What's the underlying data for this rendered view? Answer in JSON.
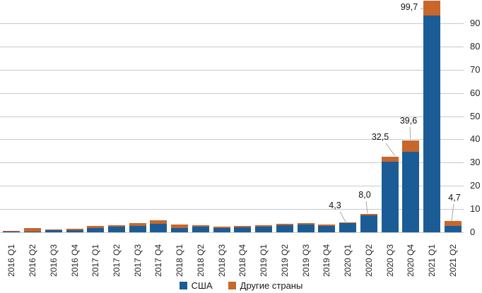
{
  "chart_data": {
    "type": "bar",
    "stacked": true,
    "categories": [
      "2016 Q1",
      "2016 Q2",
      "2016 Q3",
      "2016 Q4",
      "2017 Q1",
      "2017 Q2",
      "2017 Q3",
      "2017 Q4",
      "2018 Q1",
      "2018 Q2",
      "2018 Q3",
      "2018 Q4",
      "2019 Q1",
      "2019 Q2",
      "2019 Q3",
      "2019 Q4",
      "2020 Q1",
      "2020 Q2",
      "2020 Q3",
      "2020 Q4",
      "2021 Q1",
      "2021 Q2"
    ],
    "series": [
      {
        "name": "США",
        "color": "#1b5c96",
        "values": [
          0.4,
          0.3,
          1.0,
          0.8,
          1.7,
          2.3,
          2.7,
          3.5,
          1.8,
          2.5,
          1.8,
          2.1,
          2.4,
          3.0,
          3.3,
          2.7,
          4.0,
          7.4,
          30.5,
          34.6,
          93.3,
          2.6
        ]
      },
      {
        "name": "Другие страны",
        "color": "#c8662b",
        "values": [
          0.3,
          1.6,
          0.3,
          0.5,
          0.8,
          0.5,
          1.3,
          1.4,
          1.5,
          0.7,
          0.5,
          0.5,
          0.6,
          0.7,
          0.7,
          0.7,
          0.3,
          0.6,
          2.0,
          5.0,
          6.4,
          2.1
        ]
      }
    ],
    "data_labels": [
      null,
      null,
      null,
      null,
      null,
      null,
      null,
      null,
      null,
      null,
      null,
      null,
      null,
      null,
      null,
      null,
      "4,3",
      "8,0",
      "32,5",
      "39,6",
      "99,7",
      "4,7"
    ],
    "title": "",
    "xlabel": "",
    "ylabel": "",
    "ylim": [
      0,
      100
    ],
    "yticks": [
      0,
      10,
      20,
      30,
      40,
      50,
      60,
      70,
      80,
      90
    ],
    "y_axis_side": "right",
    "grid": true,
    "legend_position": "bottom",
    "grid_color": "#c9c9c9",
    "callout_color": "#a6a6a6",
    "text_color": "#262626"
  }
}
